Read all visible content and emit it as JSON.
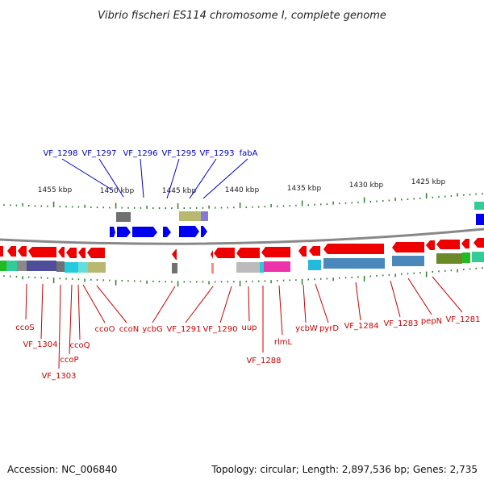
{
  "title": "Vibrio fischeri ES114 chromosome I, complete genome",
  "footer": {
    "accession": "Accession: NC_006840",
    "summary": "Topology: circular; Length: 2,897,536 bp; Genes: 2,735"
  },
  "colors": {
    "forward": "#0000ee",
    "reverse": "#ee0000",
    "ticks": "#2e7d2e",
    "backbone": "#888888",
    "top_label": "#0000cc",
    "bottom_label": "#cc0000"
  },
  "ruler_labels": [
    "1455 kbp",
    "1450 kbp",
    "1445 kbp",
    "1440 kbp",
    "1435 kbp",
    "1430 kbp",
    "1425 kbp"
  ],
  "top_labels": [
    "VF_1298",
    "VF_1297",
    "VF_1296",
    "VF_1295",
    "VF_1293",
    "fabA"
  ],
  "bottom_labels": [
    "ccoS",
    "VF_1304",
    "VF_1303",
    "ccoP",
    "ccoQ",
    "ccoO",
    "ccoN",
    "ycbG",
    "VF_1291",
    "VF_1290",
    "uup",
    "VF_1288",
    "rlmL",
    "ycbW",
    "pyrD",
    "VF_1284",
    "VF_1283",
    "pepN",
    "VF_1281"
  ]
}
